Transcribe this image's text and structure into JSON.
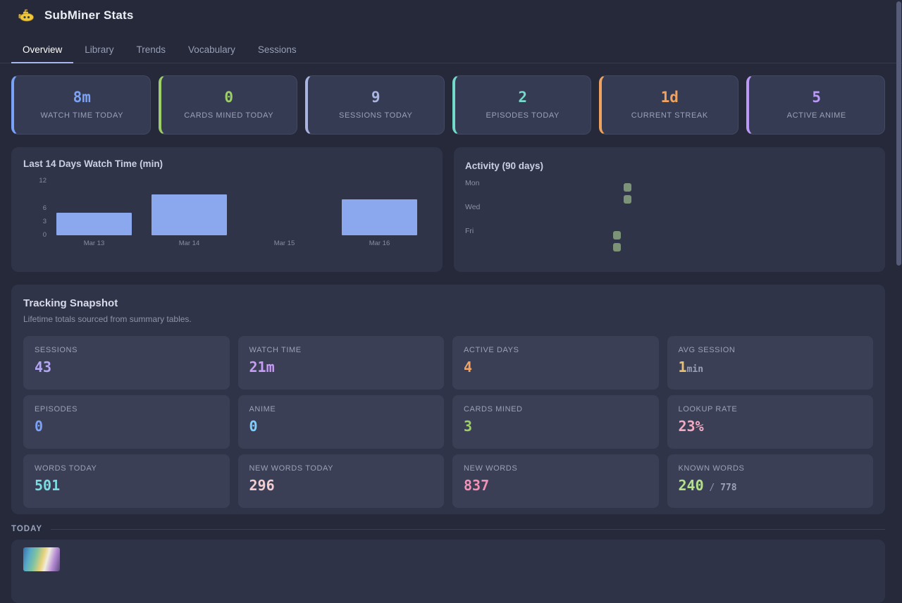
{
  "header": {
    "title": "SubMiner Stats"
  },
  "tabs": [
    {
      "label": "Overview",
      "active": true
    },
    {
      "label": "Library",
      "active": false
    },
    {
      "label": "Trends",
      "active": false
    },
    {
      "label": "Vocabulary",
      "active": false
    },
    {
      "label": "Sessions",
      "active": false
    }
  ],
  "accent": {
    "tab_underline": "#a9b6ec"
  },
  "stat_cards": [
    {
      "label": "WATCH TIME TODAY",
      "value": "8m",
      "color": "#7aa2f7"
    },
    {
      "label": "CARDS MINED TODAY",
      "value": "0",
      "color": "#9ece6a"
    },
    {
      "label": "SESSIONS TODAY",
      "value": "9",
      "color": "#a9b4e0"
    },
    {
      "label": "EPISODES TODAY",
      "value": "2",
      "color": "#73daca"
    },
    {
      "label": "CURRENT STREAK",
      "value": "1d",
      "color": "#f0a35f"
    },
    {
      "label": "ACTIVE ANIME",
      "value": "5",
      "color": "#bb9af7"
    }
  ],
  "chart_data": [
    {
      "type": "bar",
      "title": "Last 14 Days Watch Time (min)",
      "categories": [
        "Mar 13",
        "Mar 14",
        "Mar 15",
        "Mar 16"
      ],
      "values": [
        5,
        9,
        0,
        8
      ],
      "xlabel": "",
      "ylabel": "",
      "ylim": [
        0,
        12
      ],
      "yticks": [
        0,
        3,
        6,
        12
      ],
      "grid": false,
      "bar_color": "#8ba7ee"
    },
    {
      "type": "heatmap",
      "title": "Activity (90 days)",
      "row_labels": [
        "Mon",
        "Wed",
        "Fri"
      ],
      "weeks": 13,
      "active_cells": [
        {
          "week": 12,
          "weekday": "Mon"
        },
        {
          "week": 12,
          "weekday": "Tue"
        },
        {
          "week": 11,
          "weekday": "Fri"
        },
        {
          "week": 11,
          "weekday": "Sat"
        }
      ],
      "cell_color": "#7d9378"
    }
  ],
  "tracking": {
    "title": "Tracking Snapshot",
    "subtitle": "Lifetime totals sourced from summary tables.",
    "cells": [
      {
        "label": "SESSIONS",
        "value": "43",
        "color": "#b3a6f2"
      },
      {
        "label": "WATCH TIME",
        "value": "21m",
        "color": "#c79cf5"
      },
      {
        "label": "ACTIVE DAYS",
        "value": "4",
        "color": "#f0a366"
      },
      {
        "label": "AVG SESSION",
        "value": "1",
        "suffix": "min",
        "color": "#e8c06f"
      },
      {
        "label": "EPISODES",
        "value": "0",
        "color": "#7aa2f7"
      },
      {
        "label": "ANIME",
        "value": "0",
        "color": "#7dcfff"
      },
      {
        "label": "CARDS MINED",
        "value": "3",
        "color": "#9ece6a"
      },
      {
        "label": "LOOKUP RATE",
        "value": "23%",
        "color": "#f2abc0"
      },
      {
        "label": "WORDS TODAY",
        "value": "501",
        "color": "#7adbe0"
      },
      {
        "label": "NEW WORDS TODAY",
        "value": "296",
        "color": "#f3cdd0"
      },
      {
        "label": "NEW WORDS",
        "value": "837",
        "color": "#f48fb5"
      },
      {
        "label": "KNOWN WORDS",
        "value": "240",
        "sep": " / ",
        "suffix": "778",
        "color": "#b3e08a"
      }
    ]
  },
  "today": {
    "label": "TODAY"
  }
}
